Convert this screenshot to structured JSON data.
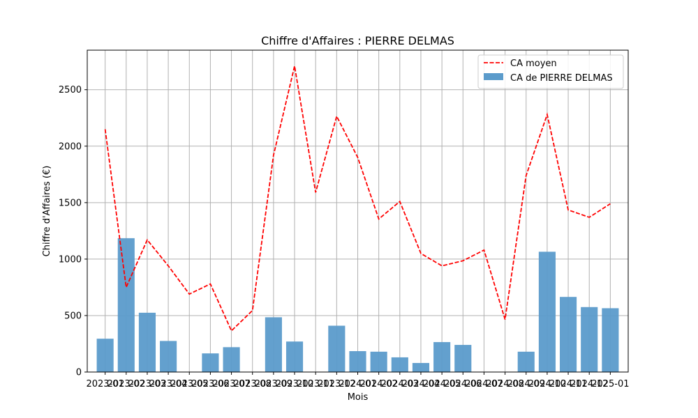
{
  "chart_data": {
    "type": "bar",
    "title": "Chiffre d'Affaires : PIERRE DELMAS",
    "xlabel": "Mois",
    "ylabel": "Chiffre d'Affaires (€)",
    "ylim": [
      0,
      2850
    ],
    "yticks": [
      0,
      500,
      1000,
      1500,
      2000,
      2500
    ],
    "grid": true,
    "legend_position": "top-right",
    "categories": [
      "2023-01",
      "2023-02",
      "2023-03",
      "2023-04",
      "2023-05",
      "2023-06",
      "2023-07",
      "2023-08",
      "2023-09",
      "2023-10",
      "2023-11",
      "2023-12",
      "2024-01",
      "2024-02",
      "2024-03",
      "2024-04",
      "2024-05",
      "2024-06",
      "2024-07",
      "2024-08",
      "2024-09",
      "2024-10",
      "2024-11",
      "2024-12",
      "2025-01"
    ],
    "series": [
      {
        "name": "CA de PIERRE DELMAS",
        "kind": "bar",
        "color": "#5b9bcb",
        "values": [
          295,
          1185,
          525,
          275,
          0,
          165,
          220,
          0,
          485,
          270,
          0,
          410,
          185,
          180,
          130,
          80,
          265,
          240,
          0,
          0,
          180,
          1065,
          665,
          575,
          565
        ]
      },
      {
        "name": "CA moyen",
        "kind": "line",
        "color": "#ff0000",
        "dashed": true,
        "values": [
          2150,
          750,
          1170,
          940,
          690,
          780,
          365,
          545,
          1920,
          2710,
          1590,
          2265,
          1900,
          1355,
          1510,
          1050,
          940,
          985,
          1080,
          465,
          1740,
          2280,
          1435,
          1370,
          1490
        ]
      }
    ]
  }
}
